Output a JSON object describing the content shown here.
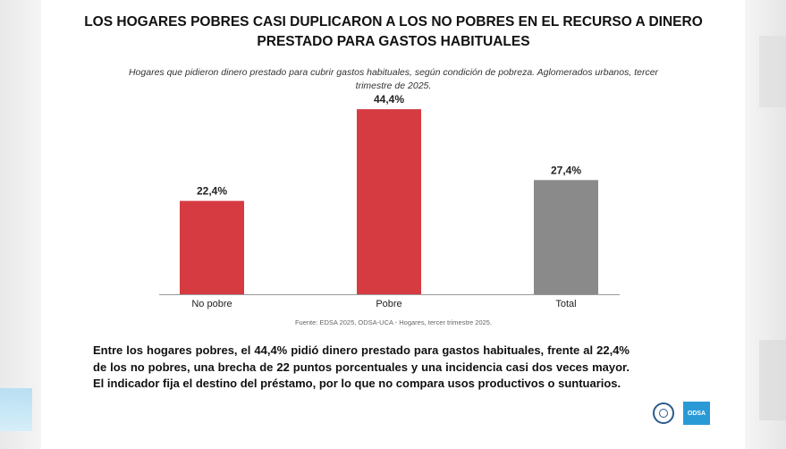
{
  "title_line1": "LOS HOGARES POBRES CASI DUPLICARON A LOS NO POBRES EN EL RECURSO A DINERO",
  "title_line2": "PRESTADO PARA GASTOS HABITUALES",
  "subtitle_line1": "Hogares que pidieron dinero prestado para cubrir gastos habituales, según condición de pobreza. Aglomerados urbanos, tercer",
  "subtitle_line2": "trimestre de 2025.",
  "source": "Fuente: EDSA 2025, ODSA-UCA - Hogares, tercer trimestre 2025.",
  "body_text": "Entre los hogares pobres, el 44,4% pidió dinero prestado para gastos habituales, frente al 22,4% de los no pobres, una brecha de 22 puntos porcentuales y una incidencia casi dos veces mayor. El indicador fija el destino del préstamo, por lo que no compara usos productivos o suntuarios.",
  "logo_text": "ODSA",
  "chart_data": {
    "type": "bar",
    "categories": [
      "No pobre",
      "Pobre",
      "Total"
    ],
    "values": [
      22.4,
      44.4,
      27.4
    ],
    "value_labels": [
      "22,4%",
      "44,4%",
      "27,4%"
    ],
    "colors": [
      "#d63b42",
      "#d63b42",
      "#8a8a8a"
    ],
    "ylim": [
      0,
      50
    ],
    "grid": false,
    "legend": "none"
  }
}
